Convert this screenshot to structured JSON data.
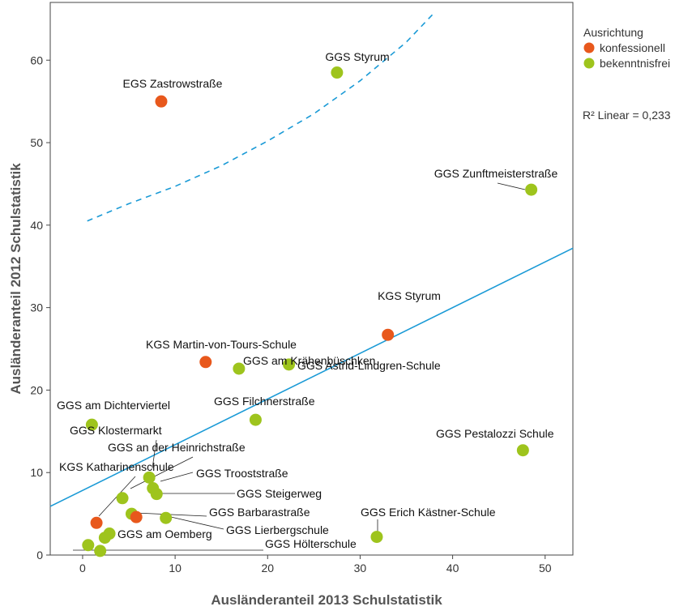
{
  "chart_data": {
    "type": "scatter",
    "xlabel": "Ausländeranteil 2013 Schulstatistik",
    "ylabel": "Ausländeranteil 2012 Schulstatistik",
    "xlim": [
      -3.5,
      53
    ],
    "ylim": [
      0,
      67
    ],
    "xticks": [
      "0",
      "10",
      "20",
      "30",
      "40",
      "50"
    ],
    "xtick_values": [
      0,
      10,
      20,
      30,
      40,
      50
    ],
    "yticks": [
      "0",
      "10",
      "20",
      "30",
      "40",
      "50",
      "60"
    ],
    "ytick_values": [
      0,
      10,
      20,
      30,
      40,
      50,
      60
    ],
    "grid": false,
    "legend": {
      "title": "Ausrichtung",
      "placement": "top-right",
      "entries": [
        {
          "name": "konfessionell",
          "color": "#e8581c"
        },
        {
          "name": "bekenntnisfrei",
          "color": "#9ec41d"
        }
      ]
    },
    "r2_label": "R² Linear = 0,233",
    "fit_line": {
      "x": [
        -3.5,
        53
      ],
      "y": [
        5.9,
        37.2
      ],
      "color": "#1a9ad6"
    },
    "conf_curve": {
      "x": [
        0.5,
        5,
        10,
        15,
        20,
        25,
        30,
        35,
        37.8
      ],
      "y": [
        40.5,
        42.6,
        44.7,
        47.2,
        50.2,
        53.5,
        57.5,
        62.2,
        65.5
      ],
      "color": "#1a9ad6"
    },
    "points": [
      {
        "label": "EGS Zastrowstraße",
        "x": 8.5,
        "y": 55,
        "group": "konfessionell"
      },
      {
        "label": "GGS Styrum",
        "x": 27.5,
        "y": 58.5,
        "group": "bekenntnisfrei"
      },
      {
        "label": "GGS Zunftmeisterstraße",
        "x": 48.5,
        "y": 44.3,
        "group": "bekenntnisfrei"
      },
      {
        "label": "KGS Styrum",
        "x": 33,
        "y": 26.7,
        "group": "konfessionell"
      },
      {
        "label": "KGS Martin-von-Tours-Schule",
        "x": 13.3,
        "y": 23.4,
        "group": "konfessionell"
      },
      {
        "label": "GGS Astrid-Lindgren-Schule",
        "x": 22.3,
        "y": 23.1,
        "group": "bekenntnisfrei"
      },
      {
        "label": "GGS am Krähenbüschken",
        "x": 16.9,
        "y": 22.6,
        "group": "bekenntnisfrei"
      },
      {
        "label": "GGS Filchnerstraße",
        "x": 18.7,
        "y": 16.4,
        "group": "bekenntnisfrei"
      },
      {
        "label": "GGS am Dichterviertel",
        "x": 1,
        "y": 15.8,
        "group": "bekenntnisfrei"
      },
      {
        "label": "GGS Pestalozzi Schule",
        "x": 47.6,
        "y": 12.7,
        "group": "bekenntnisfrei"
      },
      {
        "label": "GGS Klostermarkt",
        "x": 7.2,
        "y": 9.4,
        "group": "bekenntnisfrei"
      },
      {
        "label": "GGS an der Heinrichstraße",
        "x": 4.3,
        "y": 6.9,
        "group": "bekenntnisfrei"
      },
      {
        "label": "KGS Katharinenschule",
        "x": 1.5,
        "y": 3.9,
        "group": "konfessionell"
      },
      {
        "label": "GGS Trooststraße",
        "x": 7.6,
        "y": 8.1,
        "group": "bekenntnisfrei"
      },
      {
        "label": "GGS Steigerweg",
        "x": 8,
        "y": 7.4,
        "group": "bekenntnisfrei"
      },
      {
        "label": "GGS Barbarastraße",
        "x": 5.3,
        "y": 5,
        "group": "bekenntnisfrei"
      },
      {
        "label": "GGS Lierbergschule",
        "x": 9,
        "y": 4.5,
        "group": "bekenntnisfrei"
      },
      {
        "label": "GGS am Oemberg",
        "x": 2.9,
        "y": 2.6,
        "group": "bekenntnisfrei"
      },
      {
        "label": "GGS Erich Kästner-Schule",
        "x": 31.8,
        "y": 2.2,
        "group": "bekenntnisfrei"
      },
      {
        "label": "GGS Hölterschule",
        "x": 1.9,
        "y": 0.5,
        "group": "bekenntnisfrei"
      },
      {
        "label": "",
        "x": 5.8,
        "y": 4.6,
        "group": "konfessionell"
      },
      {
        "label": "",
        "x": 2.4,
        "y": 2.1,
        "group": "bekenntnisfrei"
      },
      {
        "label": "",
        "x": 0.6,
        "y": 1.2,
        "group": "bekenntnisfrei"
      }
    ]
  }
}
